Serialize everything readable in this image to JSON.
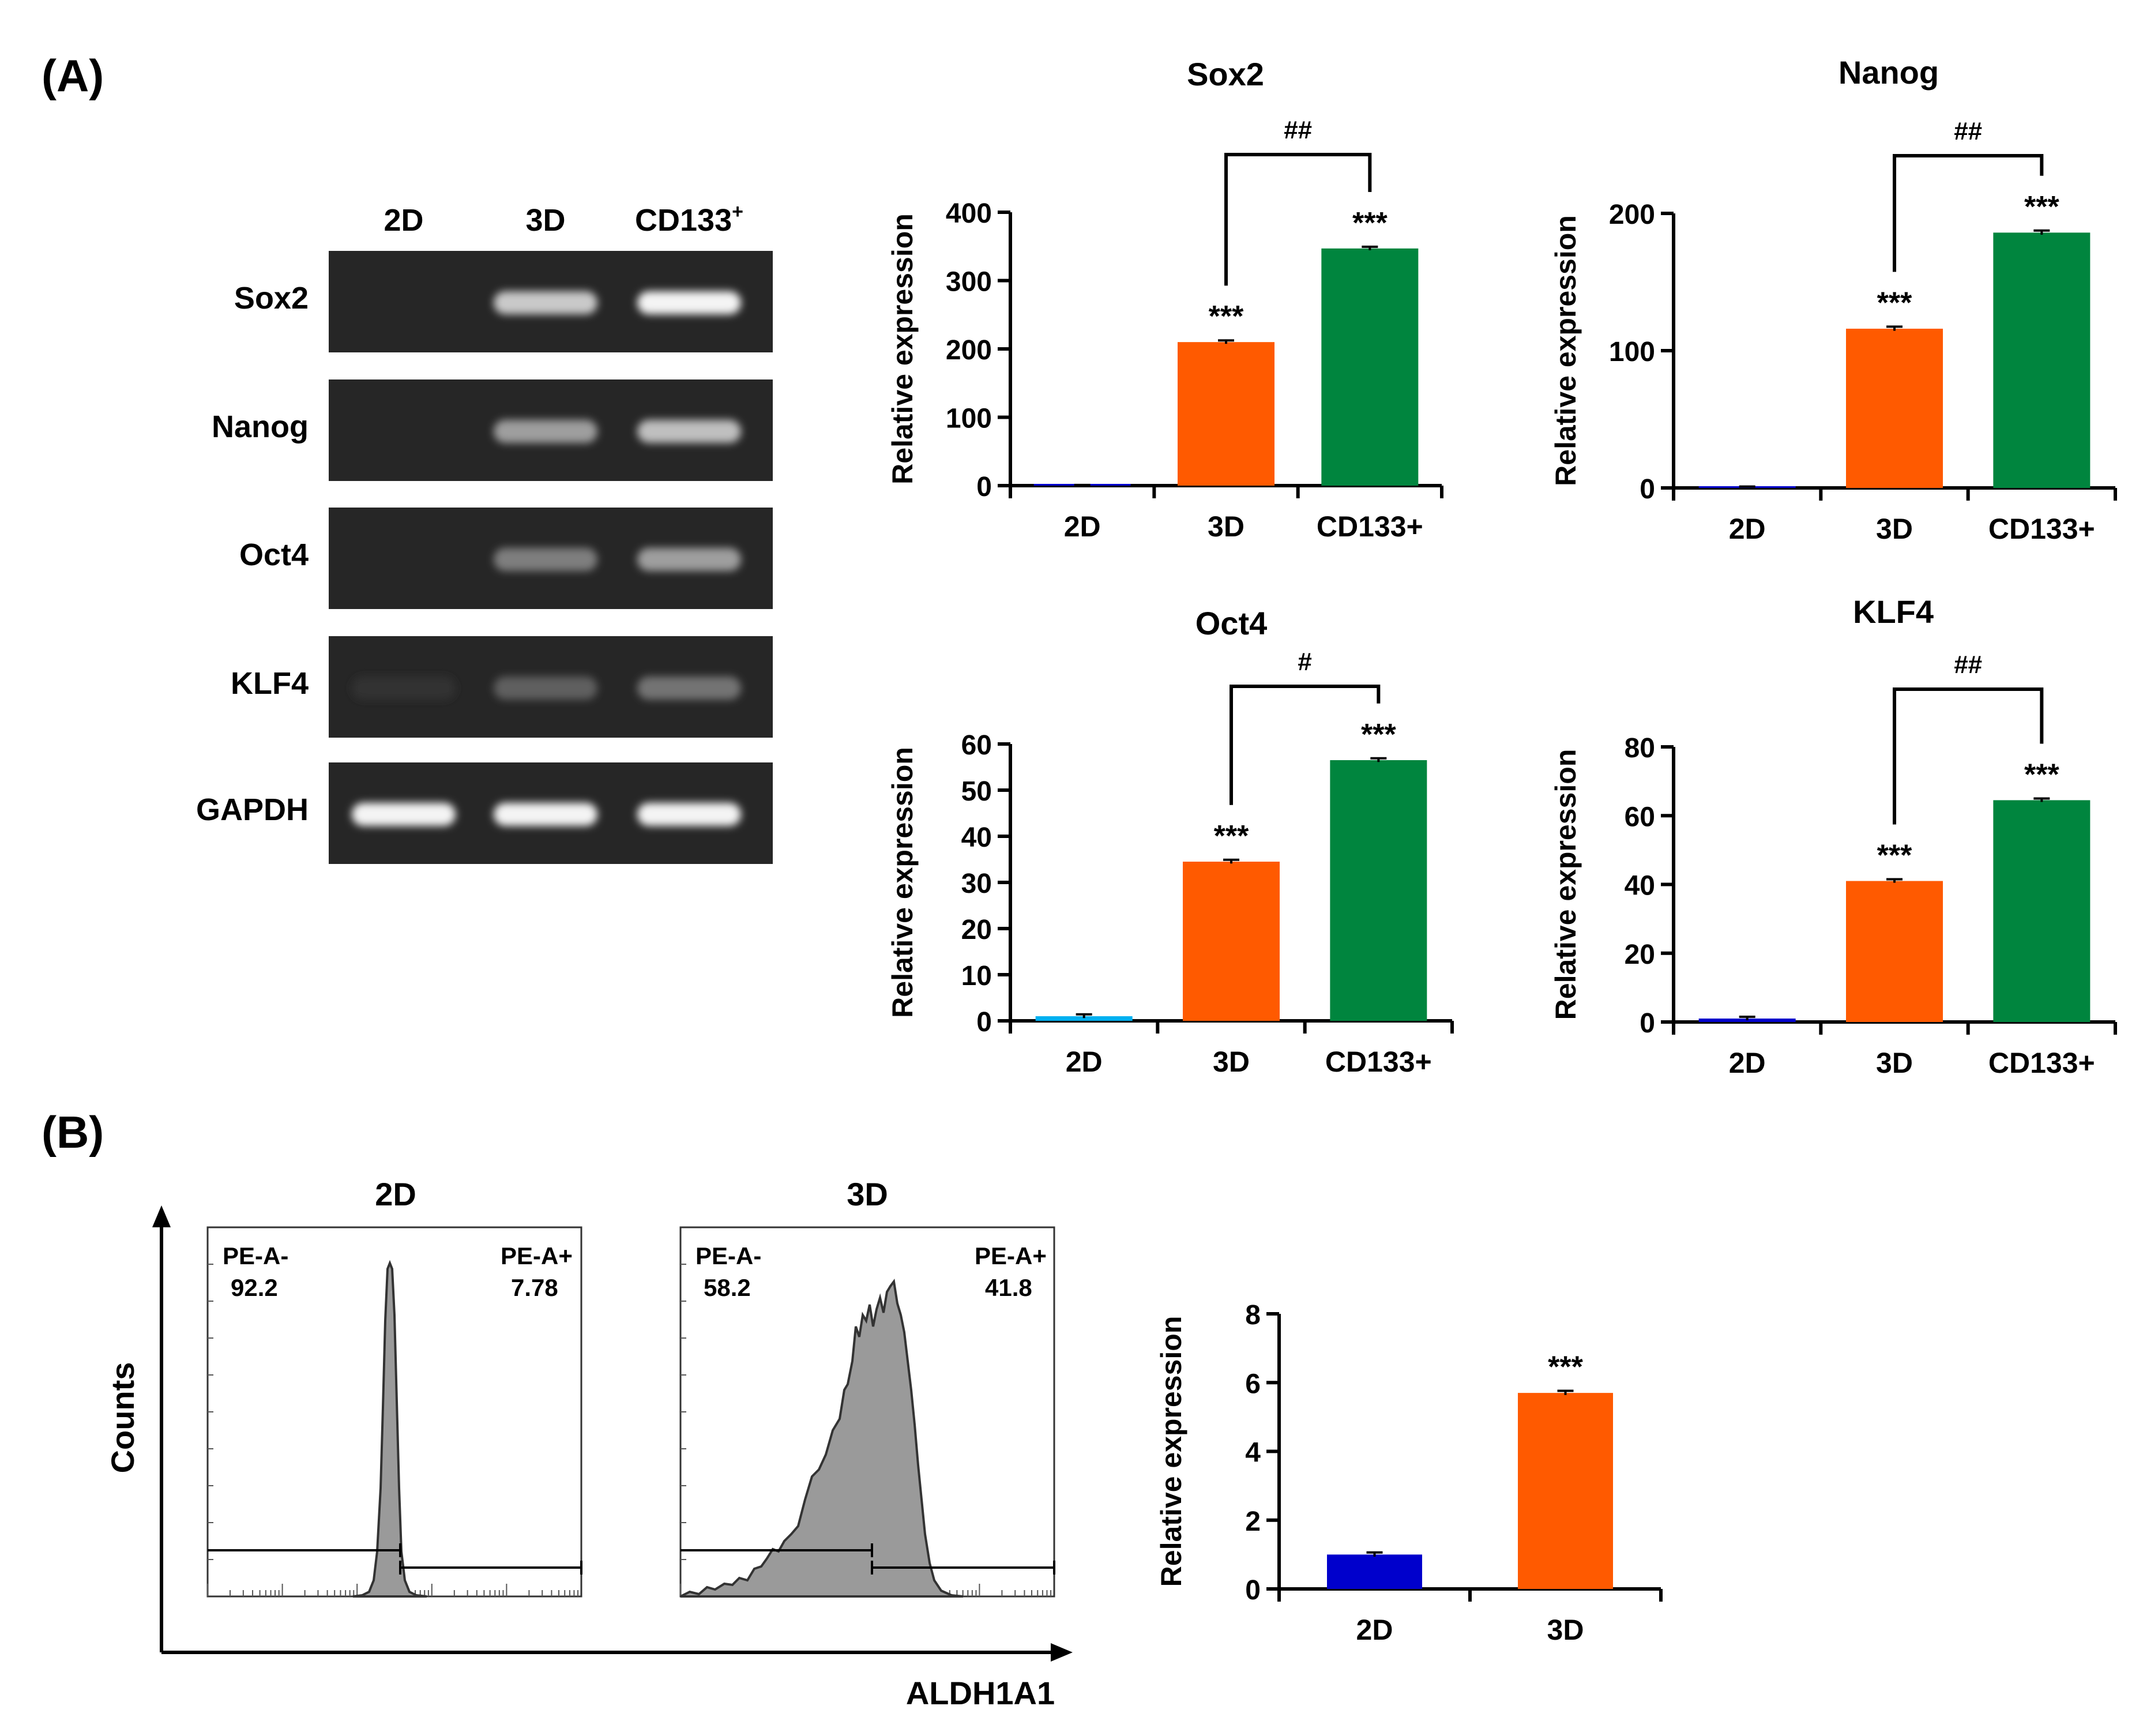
{
  "panels": {
    "a_label": "(A)",
    "b_label": "(B)"
  },
  "gel": {
    "columns": [
      "2D",
      "3D",
      "CD133",
      "+"
    ],
    "rows": [
      {
        "gene": "Sox2",
        "bands": [
          0,
          0.75,
          0.95
        ]
      },
      {
        "gene": "Nanog",
        "bands": [
          0,
          0.55,
          0.7
        ]
      },
      {
        "gene": "Oct4",
        "bands": [
          0,
          0.4,
          0.55
        ]
      },
      {
        "gene": "KLF4",
        "bands": [
          0.05,
          0.25,
          0.35
        ]
      },
      {
        "gene": "GAPDH",
        "bands": [
          0.95,
          0.95,
          0.95
        ]
      }
    ]
  },
  "chart_data": [
    {
      "type": "bar",
      "id": "sox2",
      "title": "Sox2",
      "categories": [
        "2D",
        "3D",
        "CD133+"
      ],
      "values": [
        1,
        210,
        347
      ],
      "errors": [
        0,
        2.5,
        2.5
      ],
      "colors": [
        "#0000cc",
        "#ff5a00",
        "#00853e"
      ],
      "ylabel": "Relative expression",
      "ylim": [
        0,
        400
      ],
      "yticks": [
        0,
        100,
        200,
        300,
        400
      ],
      "stars": [
        "",
        "***",
        "***"
      ],
      "bracket": {
        "from": "3D",
        "to": "CD133+",
        "label": "##"
      }
    },
    {
      "type": "bar",
      "id": "nanog",
      "title": "Nanog",
      "categories": [
        "2D",
        "3D",
        "CD133+"
      ],
      "values": [
        1,
        116,
        186
      ],
      "errors": [
        0,
        1.5,
        1.5
      ],
      "colors": [
        "#0000cc",
        "#ff5a00",
        "#00853e"
      ],
      "ylabel": "Relative expression",
      "ylim": [
        0,
        200
      ],
      "yticks": [
        0,
        100,
        200
      ],
      "stars": [
        "",
        "***",
        "***"
      ],
      "bracket": {
        "from": "3D",
        "to": "CD133+",
        "label": "##"
      }
    },
    {
      "type": "bar",
      "id": "oct4",
      "title": "Oct4",
      "categories": [
        "2D",
        "3D",
        "CD133+"
      ],
      "values": [
        1,
        34.5,
        56.5
      ],
      "errors": [
        0.4,
        0.4,
        0.4
      ],
      "colors": [
        "#00b0f0",
        "#ff5a00",
        "#00853e"
      ],
      "ylabel": "Relative expression",
      "ylim": [
        0,
        60
      ],
      "yticks": [
        0,
        10,
        20,
        30,
        40,
        50,
        60
      ],
      "stars": [
        "",
        "***",
        "***"
      ],
      "bracket": {
        "from": "3D",
        "to": "CD133+",
        "label": "#"
      }
    },
    {
      "type": "bar",
      "id": "klf4",
      "title": "KLF4",
      "categories": [
        "2D",
        "3D",
        "CD133+"
      ],
      "values": [
        1,
        41,
        64.5
      ],
      "errors": [
        0.5,
        0.5,
        0.5
      ],
      "colors": [
        "#0000cc",
        "#ff5a00",
        "#00853e"
      ],
      "ylabel": "Relative expression",
      "ylim": [
        0,
        80
      ],
      "yticks": [
        0,
        20,
        40,
        60,
        80
      ],
      "stars": [
        "",
        "***",
        "***"
      ],
      "bracket": {
        "from": "3D",
        "to": "CD133+",
        "label": "##"
      }
    },
    {
      "type": "bar",
      "id": "aldh",
      "title": "",
      "categories": [
        "2D",
        "3D"
      ],
      "values": [
        1,
        5.7
      ],
      "errors": [
        0.06,
        0.06
      ],
      "colors": [
        "#0000cc",
        "#ff5a00"
      ],
      "ylabel": "Relative expression",
      "ylim": [
        0,
        8
      ],
      "yticks": [
        0,
        2,
        4,
        6,
        8
      ],
      "stars": [
        "",
        "***"
      ]
    }
  ],
  "flow": {
    "xlabel": "ALDH1A1",
    "ylabel": "Counts",
    "plots": [
      {
        "title": "2D",
        "neg_label": "PE-A-",
        "neg_value": "92.2",
        "pos_label": "PE-A+",
        "pos_value": "7.78"
      },
      {
        "title": "3D",
        "neg_label": "PE-A-",
        "neg_value": "58.2",
        "pos_label": "PE-A+",
        "pos_value": "41.8"
      }
    ]
  }
}
